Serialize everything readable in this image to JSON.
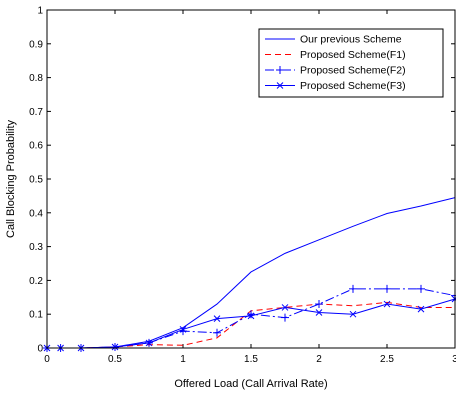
{
  "chart_data": {
    "type": "line",
    "xlabel": "Offered Load (Call Arrival Rate)",
    "ylabel": "Call Blocking Probability",
    "xlim": [
      0,
      3
    ],
    "ylim": [
      0,
      1
    ],
    "xticks": [
      "0",
      "0.5",
      "1",
      "1.5",
      "2",
      "2.5",
      "3"
    ],
    "yticks": [
      "0",
      "0.1",
      "0.2",
      "0.3",
      "0.4",
      "0.5",
      "0.6",
      "0.7",
      "0.8",
      "0.9",
      "1"
    ],
    "grid": false,
    "legend_position": "top-right",
    "series": [
      {
        "name": "Our previous Scheme",
        "color": "#0000ff",
        "line": "solid",
        "marker": "none",
        "x": [
          0,
          0.1,
          0.25,
          0.5,
          0.75,
          1.0,
          1.25,
          1.5,
          1.75,
          2.0,
          2.25,
          2.5,
          2.75,
          3.0
        ],
        "y": [
          0,
          0,
          0,
          0.003,
          0.02,
          0.06,
          0.13,
          0.225,
          0.28,
          0.32,
          0.36,
          0.398,
          0.42,
          0.445
        ]
      },
      {
        "name": "Proposed Scheme(F1)",
        "color": "#ff0000",
        "line": "dashed",
        "marker": "none",
        "x": [
          0,
          0.1,
          0.25,
          0.5,
          0.75,
          1.0,
          1.25,
          1.5,
          1.75,
          2.0,
          2.25,
          2.5,
          2.75,
          3.0
        ],
        "y": [
          0,
          0,
          0,
          0.003,
          0.01,
          0.008,
          0.03,
          0.11,
          0.12,
          0.13,
          0.125,
          0.135,
          0.12,
          0.12
        ]
      },
      {
        "name": "Proposed Scheme(F2)",
        "color": "#0000ff",
        "line": "dashdot",
        "marker": "plus",
        "x": [
          0,
          0.1,
          0.25,
          0.5,
          0.75,
          1.0,
          1.25,
          1.5,
          1.75,
          2.0,
          2.25,
          2.5,
          2.75,
          3.0
        ],
        "y": [
          0,
          0,
          0,
          0.003,
          0.015,
          0.05,
          0.045,
          0.1,
          0.09,
          0.13,
          0.175,
          0.175,
          0.175,
          0.155
        ]
      },
      {
        "name": "Proposed Scheme(F3)",
        "color": "#0000ff",
        "line": "solid",
        "marker": "x",
        "x": [
          0,
          0.1,
          0.25,
          0.5,
          0.75,
          1.0,
          1.25,
          1.5,
          1.75,
          2.0,
          2.25,
          2.5,
          2.75,
          3.0
        ],
        "y": [
          0,
          0,
          0,
          0.003,
          0.015,
          0.055,
          0.087,
          0.095,
          0.12,
          0.105,
          0.1,
          0.13,
          0.115,
          0.145
        ]
      }
    ]
  }
}
